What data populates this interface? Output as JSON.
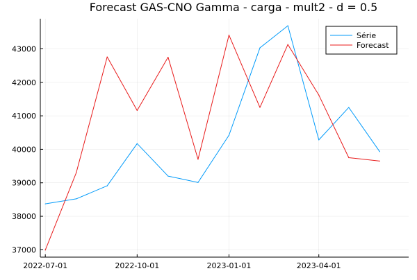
{
  "chart_data": {
    "type": "line",
    "title": "Forecast GAS-CNO Gamma - carga - mult2 - d = 0.5",
    "xlabel": "",
    "ylabel": "",
    "x": [
      "2022-07-01",
      "2022-08-01",
      "2022-09-01",
      "2022-10-01",
      "2022-11-01",
      "2022-12-01",
      "2023-01-01",
      "2023-02-01",
      "2023-03-01",
      "2023-04-01",
      "2023-05-01",
      "2023-06-01"
    ],
    "xticks": [
      "2022-07-01",
      "2022-10-01",
      "2023-01-01",
      "2023-04-01"
    ],
    "yticks": [
      37000,
      38000,
      39000,
      40000,
      41000,
      42000,
      43000
    ],
    "ylim": [
      36780,
      43900
    ],
    "xlim": [
      "2022-06-26",
      "2023-06-30"
    ],
    "grid": true,
    "legend_position": "top-right",
    "series": [
      {
        "name": "Série",
        "color": "#009AFA",
        "values": [
          38370,
          38520,
          38910,
          40170,
          39200,
          39010,
          40420,
          43030,
          43690,
          40280,
          41250,
          39930
        ]
      },
      {
        "name": "Forecast",
        "color": "#E81A1A",
        "values": [
          36990,
          39300,
          42760,
          41160,
          42750,
          39700,
          43410,
          41250,
          43130,
          41620,
          39750,
          39650
        ]
      }
    ]
  }
}
